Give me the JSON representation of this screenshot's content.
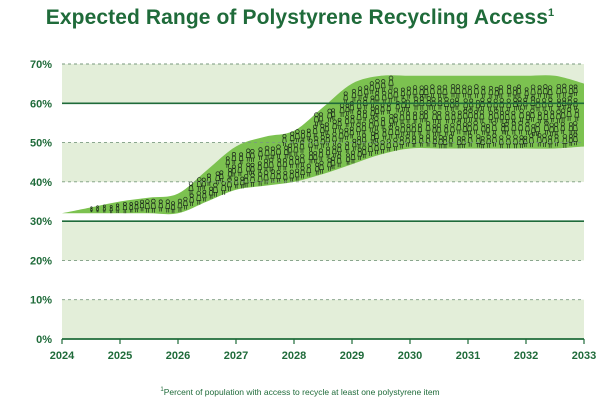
{
  "title": "Expected Range of Polystyrene Recycling Access",
  "title_marker": "1",
  "footnote": {
    "marker": "1",
    "text": "Percent of population with access to recycle at least one polystyrene item"
  },
  "colors": {
    "title": "#1f6b3a",
    "band": "#e3eed9",
    "range_fill": "#7cc250",
    "solid_grid": "#1f6b3a",
    "dashed_grid": "#7a9a7e",
    "figure_stroke": "#1c2a1c"
  },
  "chart_data": {
    "type": "area",
    "title": "Expected Range of Polystyrene Recycling Access",
    "xlabel": "",
    "ylabel": "",
    "x_ticks": [
      2024,
      2025,
      2026,
      2027,
      2028,
      2029,
      2030,
      2031,
      2032,
      2033
    ],
    "y_ticks": [
      0,
      10,
      20,
      30,
      40,
      50,
      60,
      70
    ],
    "y_tick_labels": [
      "0%",
      "10%",
      "20%",
      "30%",
      "40%",
      "50%",
      "60%",
      "70%"
    ],
    "xlim": [
      2024,
      2033
    ],
    "ylim": [
      0,
      70
    ],
    "solid_gridlines": [
      30,
      60
    ],
    "dashed_gridlines": [
      10,
      20,
      40,
      50,
      70
    ],
    "x": [
      2024,
      2024.5,
      2025,
      2025.5,
      2026,
      2026.5,
      2027,
      2027.5,
      2028,
      2028.5,
      2029,
      2029.5,
      2030,
      2030.5,
      2031,
      2031.5,
      2032,
      2032.5,
      2033
    ],
    "lower": [
      32,
      32,
      32,
      32,
      32,
      35,
      38,
      39,
      40,
      42,
      44.5,
      47,
      48.5,
      48.5,
      48.5,
      48.5,
      48.5,
      48.5,
      49
    ],
    "upper": [
      32,
      33.5,
      35,
      36,
      37,
      43,
      49,
      51.5,
      53,
      59,
      65,
      67,
      67,
      67,
      67,
      67,
      67,
      67,
      65
    ]
  }
}
